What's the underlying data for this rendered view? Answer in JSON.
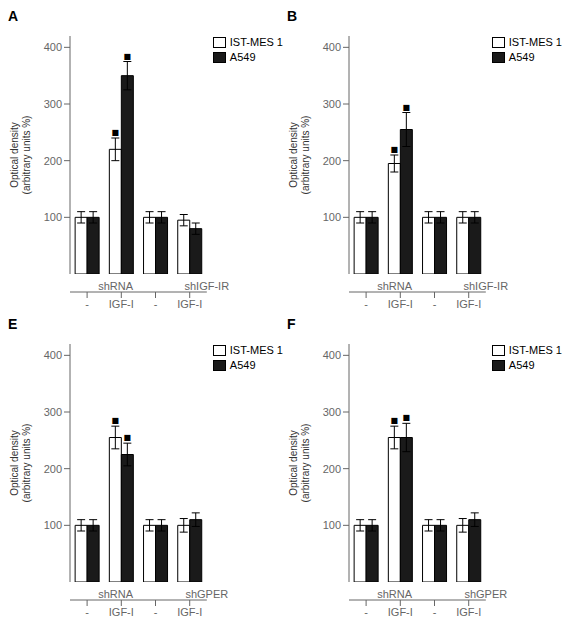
{
  "chart_data": [
    {
      "type": "bar",
      "title": "A",
      "categories": [
        "-",
        "IGF-I",
        "-",
        "IGF-I"
      ],
      "groups": [
        "shRNA",
        "shIGF-IR"
      ],
      "ylabel": "Optical density\n(arbitrary units %)",
      "ylim": [
        0,
        420
      ],
      "yticks": [
        100,
        200,
        300,
        400
      ],
      "legend": "upper right",
      "series": [
        {
          "name": "IST-MES 1",
          "color": "#ffffff",
          "values": [
            100,
            220,
            100,
            95
          ],
          "errors": [
            10,
            20,
            10,
            10
          ]
        },
        {
          "name": "A549",
          "color": "#1a1a1a",
          "values": [
            100,
            350,
            100,
            80
          ],
          "errors": [
            10,
            25,
            10,
            10
          ]
        }
      ],
      "annotations": [
        {
          "series": "IST-MES 1",
          "index": 1,
          "text": "■"
        },
        {
          "series": "A549",
          "index": 1,
          "text": "■"
        }
      ]
    },
    {
      "type": "bar",
      "title": "B",
      "categories": [
        "-",
        "IGF-I",
        "-",
        "IGF-I"
      ],
      "groups": [
        "shRNA",
        "shIGF-IR"
      ],
      "ylabel": "Optical density\n(arbitrary units %)",
      "ylim": [
        0,
        420
      ],
      "yticks": [
        100,
        200,
        300,
        400
      ],
      "legend": "upper right",
      "series": [
        {
          "name": "IST-MES 1",
          "color": "#ffffff",
          "values": [
            100,
            195,
            100,
            100
          ],
          "errors": [
            10,
            15,
            10,
            10
          ]
        },
        {
          "name": "A549",
          "color": "#1a1a1a",
          "values": [
            100,
            255,
            100,
            100
          ],
          "errors": [
            10,
            30,
            10,
            10
          ]
        }
      ],
      "annotations": [
        {
          "series": "IST-MES 1",
          "index": 1,
          "text": "■"
        },
        {
          "series": "A549",
          "index": 1,
          "text": "■"
        }
      ]
    },
    {
      "type": "bar",
      "title": "E",
      "categories": [
        "-",
        "IGF-I",
        "-",
        "IGF-I"
      ],
      "groups": [
        "shRNA",
        "shGPER"
      ],
      "ylabel": "Optical density\n(arbitrary units %)",
      "ylim": [
        0,
        420
      ],
      "yticks": [
        100,
        200,
        300,
        400
      ],
      "legend": "upper right",
      "series": [
        {
          "name": "IST-MES 1",
          "color": "#ffffff",
          "values": [
            100,
            255,
            100,
            100
          ],
          "errors": [
            10,
            20,
            10,
            12
          ]
        },
        {
          "name": "A549",
          "color": "#1a1a1a",
          "values": [
            100,
            225,
            100,
            110
          ],
          "errors": [
            10,
            20,
            10,
            12
          ]
        }
      ],
      "annotations": [
        {
          "series": "IST-MES 1",
          "index": 1,
          "text": "■"
        },
        {
          "series": "A549",
          "index": 1,
          "text": "■"
        }
      ]
    },
    {
      "type": "bar",
      "title": "F",
      "categories": [
        "-",
        "IGF-I",
        "-",
        "IGF-I"
      ],
      "groups": [
        "shRNA",
        "shGPER"
      ],
      "ylabel": "Optical density\n(arbitrary units %)",
      "ylim": [
        0,
        420
      ],
      "yticks": [
        100,
        200,
        300,
        400
      ],
      "legend": "upper right",
      "series": [
        {
          "name": "IST-MES 1",
          "color": "#ffffff",
          "values": [
            100,
            255,
            100,
            100
          ],
          "errors": [
            10,
            20,
            10,
            12
          ]
        },
        {
          "name": "A549",
          "color": "#1a1a1a",
          "values": [
            100,
            255,
            100,
            110
          ],
          "errors": [
            10,
            25,
            10,
            12
          ]
        }
      ],
      "annotations": [
        {
          "series": "IST-MES 1",
          "index": 1,
          "text": "■"
        },
        {
          "series": "A549",
          "index": 1,
          "text": "■"
        }
      ]
    }
  ]
}
